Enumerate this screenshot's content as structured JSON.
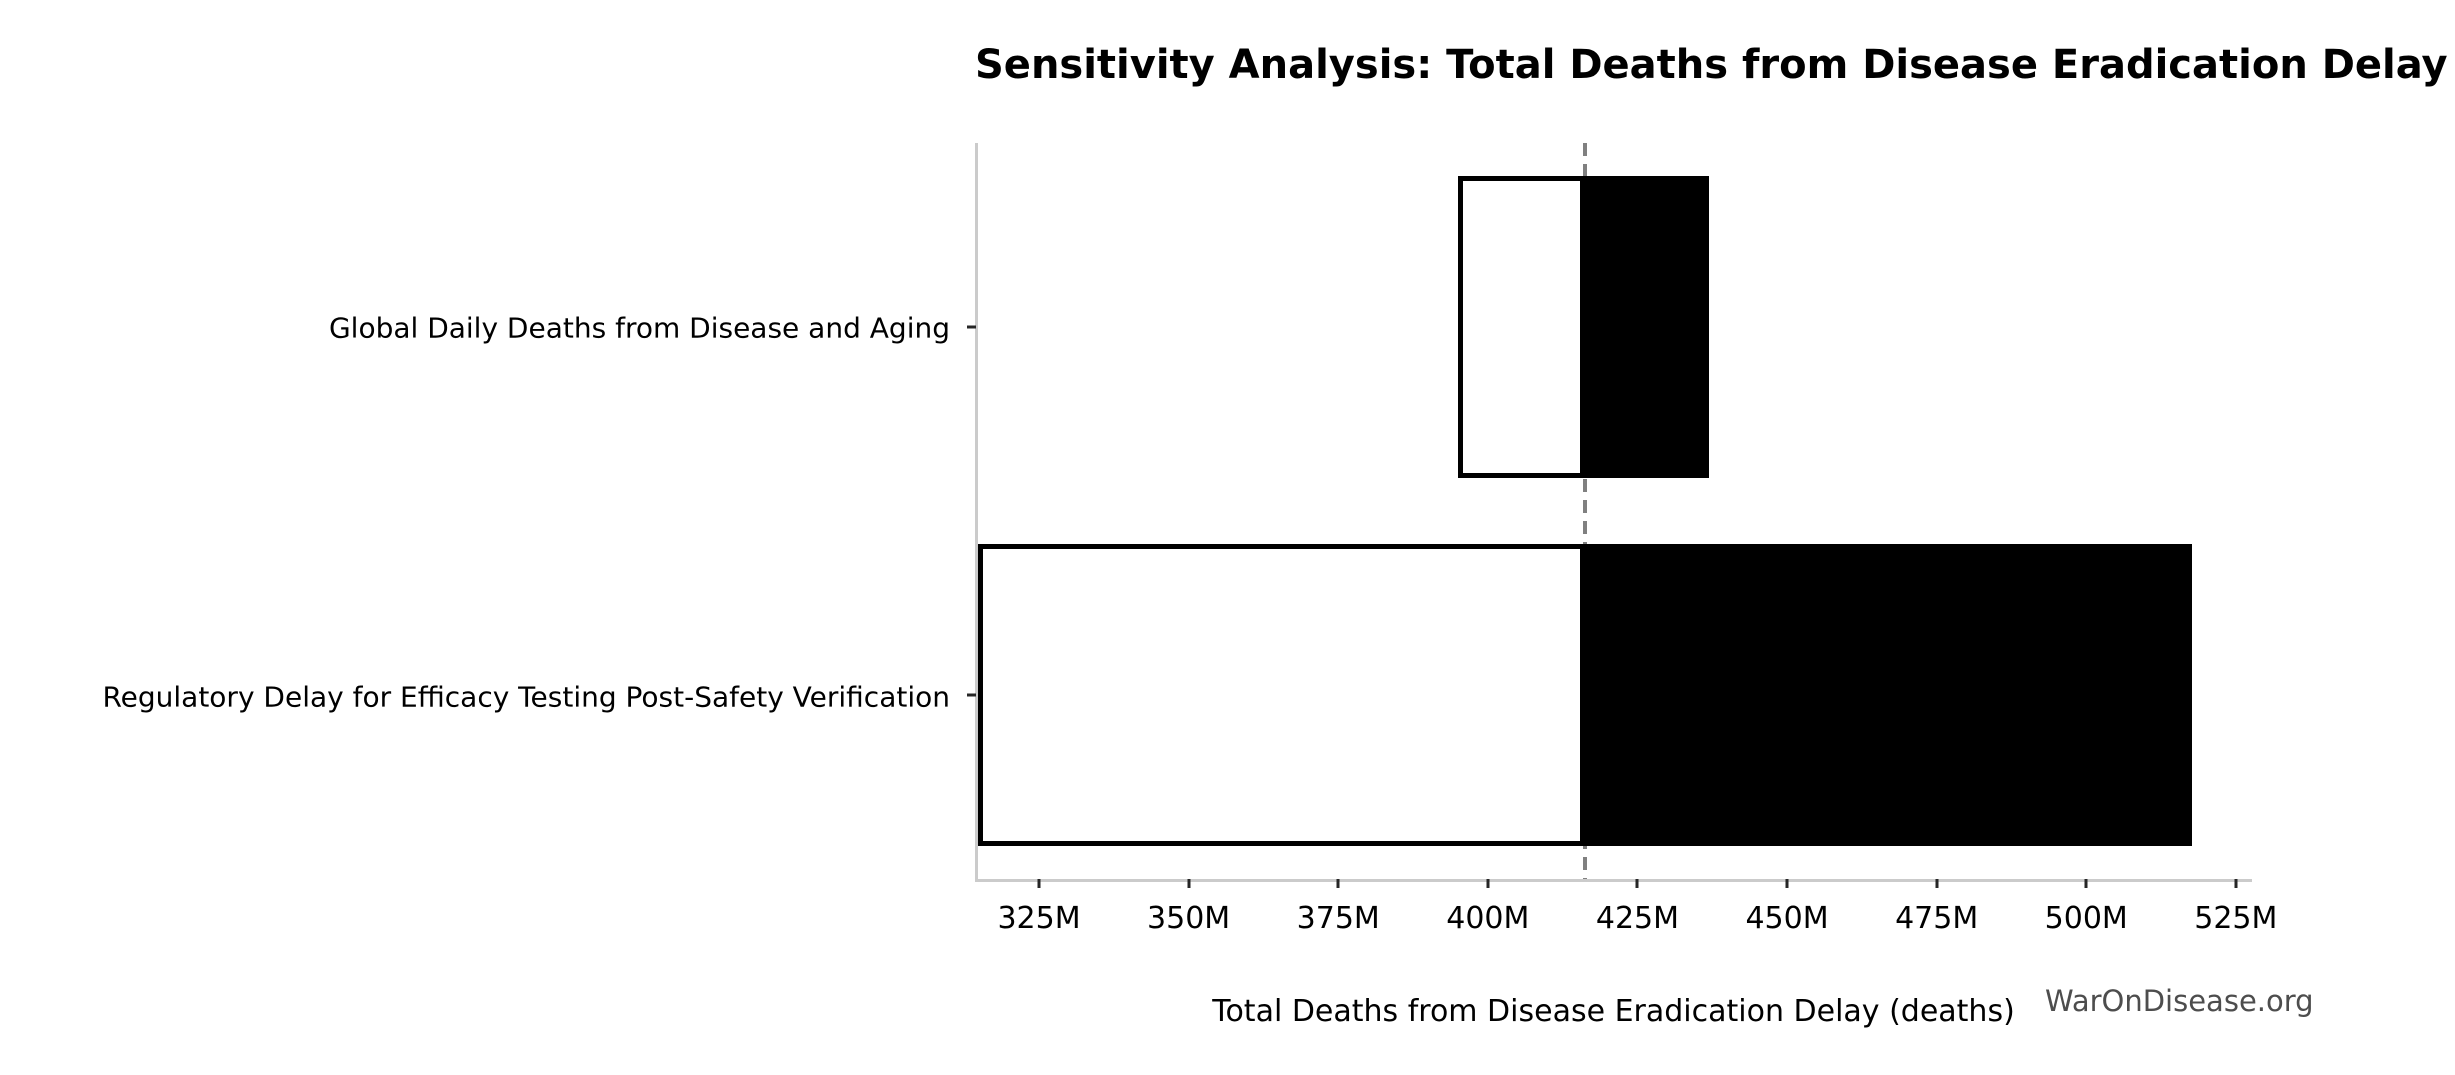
{
  "watermark": "WarOnDisease.org",
  "chart_data": {
    "type": "bar",
    "subtype": "tornado-sensitivity",
    "orientation": "horizontal",
    "title": "Sensitivity Analysis: Total Deaths from Disease Eradication Delay",
    "xlabel": "Total Deaths from Disease Eradication Delay (deaths)",
    "ylabel": "",
    "values_unit": "millions of deaths",
    "xlim_millions": [
      314.8,
      527.7
    ],
    "baseline_millions": 416.2,
    "grid": false,
    "legend": null,
    "categories": [
      "Global Daily Deaths from Disease and Aging",
      "Regulatory Delay for Efficacy Testing Post-Safety Verification"
    ],
    "bars": [
      {
        "label": "Global Daily Deaths from Disease and Aging",
        "low_millions": 395.0,
        "high_millions": 437.0
      },
      {
        "label": "Regulatory Delay for Efficacy Testing Post-Safety Verification",
        "low_millions": 314.8,
        "high_millions": 517.7
      }
    ],
    "xticks": [
      {
        "value_millions": 325,
        "label": "325M"
      },
      {
        "value_millions": 350,
        "label": "350M"
      },
      {
        "value_millions": 375,
        "label": "375M"
      },
      {
        "value_millions": 400,
        "label": "400M"
      },
      {
        "value_millions": 425,
        "label": "425M"
      },
      {
        "value_millions": 450,
        "label": "450M"
      },
      {
        "value_millions": 475,
        "label": "475M"
      },
      {
        "value_millions": 500,
        "label": "500M"
      },
      {
        "value_millions": 525,
        "label": "525M"
      }
    ],
    "colors": {
      "fill_below_baseline": "#ffffff",
      "fill_above_baseline": "#000000",
      "bar_edge": "#000000",
      "baseline_line": "#808080",
      "spine": "#cbcbcb",
      "tick": "#262626",
      "text": "#000000",
      "watermark": "#4d4d4d",
      "background": "#ffffff"
    }
  }
}
